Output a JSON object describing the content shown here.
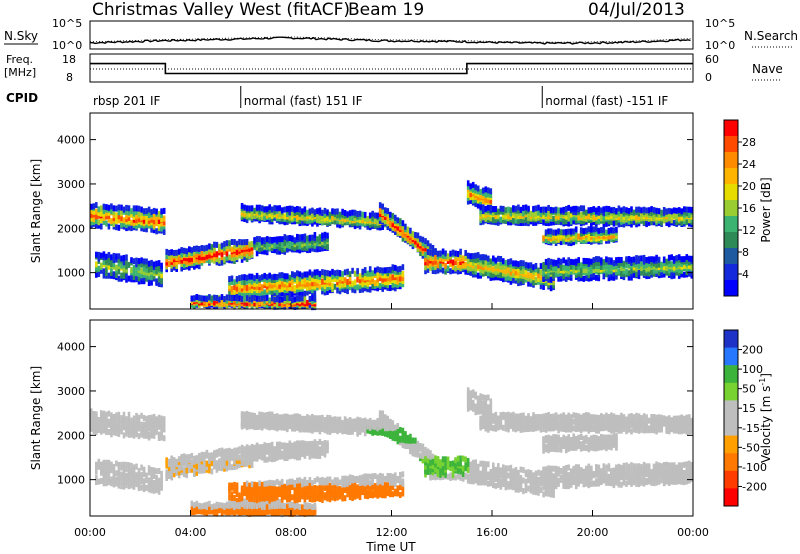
{
  "header": {
    "station": "Christmas Valley West (fitACF)",
    "beam": "Beam 19",
    "date": "04/Jul/2013"
  },
  "noise_panel": {
    "left_label": "N.Sky",
    "right_label": "N.Search",
    "left_ticks": [
      "10^5",
      "10^0"
    ],
    "right_ticks": [
      "10^5",
      "10^0"
    ]
  },
  "freq_panel": {
    "left_label_line1": "Freq.",
    "left_label_line2": "[MHz]",
    "right_label": "Nave",
    "left_ticks": [
      "18",
      "8"
    ],
    "right_ticks": [
      "60",
      "0"
    ]
  },
  "cpid": {
    "label": "CPID",
    "segments": [
      {
        "start_hour": 0,
        "text": "rbsp 201 IF"
      },
      {
        "start_hour": 6,
        "text": "normal (fast) 151 IF"
      },
      {
        "start_hour": 18,
        "text": "normal (fast) -151 IF"
      }
    ]
  },
  "power_panel": {
    "ylabel": "Slant Range [km]",
    "cbar_label": "Power [dB]",
    "cbar_ticks": [
      "28",
      "24",
      "20",
      "16",
      "12",
      "8",
      "4"
    ],
    "cbar_colors": [
      "#ff0000",
      "#ff4a00",
      "#ff8c00",
      "#ffb400",
      "#e6dc00",
      "#9acd32",
      "#3cb371",
      "#2e8b57",
      "#1e5aa0",
      "#1428dc",
      "#0000ff"
    ]
  },
  "velocity_panel": {
    "ylabel": "Slant Range [km]",
    "cbar_label": "Velocity [m s",
    "cbar_label_sup": "-1",
    "cbar_label_end": "]",
    "cbar_ticks": [
      "200",
      "100",
      "50",
      "15",
      "-15",
      "-50",
      "-100",
      "-200"
    ],
    "cbar_colors": [
      "#1e32c8",
      "#2878ff",
      "#3cb43c",
      "#78d232",
      "#bebebe",
      "#bebebe",
      "#ffa000",
      "#ff7800",
      "#ff3c00",
      "#ff0000"
    ]
  },
  "time_axis": {
    "label": "Time UT",
    "ticks": [
      "00:00",
      "04:00",
      "08:00",
      "12:00",
      "16:00",
      "20:00",
      "00:00"
    ]
  },
  "chart_data": {
    "type": "heatmap",
    "x_range_hours": [
      0,
      24
    ],
    "range_ticks_km": [
      1000,
      2000,
      3000,
      4000
    ],
    "range_limits_km": [
      180,
      4600
    ],
    "noise_sky_trace": [
      1.1,
      1.3,
      1.5,
      1.7,
      1.8,
      2.0,
      2.1,
      2.3,
      2.4,
      2.2,
      2.0,
      1.8,
      1.6,
      1.6,
      1.5,
      1.4,
      1.2,
      1.1,
      1.0,
      1.0,
      1.1,
      1.2,
      1.4,
      1.7
    ],
    "frequency_mhz": [
      {
        "start_hour": 0,
        "end_hour": 3,
        "value": 16
      },
      {
        "start_hour": 3,
        "end_hour": 15,
        "value": 10.5
      },
      {
        "start_hour": 15,
        "end_hour": 24,
        "value": 16
      }
    ],
    "nave_level": 30,
    "echo_bands": [
      {
        "start_hour": 0.0,
        "end_hour": 3.0,
        "r_start_km": 2300,
        "r_end_km": 2150,
        "width_km": 420,
        "peak_db": 26
      },
      {
        "start_hour": 0.2,
        "end_hour": 2.9,
        "r_start_km": 1200,
        "r_end_km": 950,
        "width_km": 450,
        "peak_db": 14
      },
      {
        "start_hour": 3.0,
        "end_hour": 6.5,
        "r_start_km": 1250,
        "r_end_km": 1550,
        "width_km": 380,
        "peak_db": 30
      },
      {
        "start_hour": 6.5,
        "end_hour": 9.5,
        "r_start_km": 1600,
        "r_end_km": 1700,
        "width_km": 280,
        "peak_db": 12
      },
      {
        "start_hour": 5.5,
        "end_hour": 12.5,
        "r_start_km": 650,
        "r_end_km": 900,
        "width_km": 420,
        "peak_db": 24
      },
      {
        "start_hour": 6.0,
        "end_hour": 12.0,
        "r_start_km": 2350,
        "r_end_km": 2150,
        "width_km": 260,
        "peak_db": 18
      },
      {
        "start_hour": 4.0,
        "end_hour": 9.0,
        "r_start_km": 350,
        "r_end_km": 320,
        "width_km": 160,
        "peak_db": 28
      },
      {
        "start_hour": 11.5,
        "end_hour": 14.0,
        "r_start_km": 2350,
        "r_end_km": 1200,
        "width_km": 320,
        "peak_db": 30
      },
      {
        "start_hour": 13.3,
        "end_hour": 15.0,
        "r_start_km": 1250,
        "r_end_km": 1250,
        "width_km": 400,
        "peak_db": 28
      },
      {
        "start_hour": 15.0,
        "end_hour": 16.0,
        "r_start_km": 2800,
        "r_end_km": 2600,
        "width_km": 380,
        "peak_db": 24
      },
      {
        "start_hour": 15.5,
        "end_hour": 24.0,
        "r_start_km": 2300,
        "r_end_km": 2250,
        "width_km": 300,
        "peak_db": 18
      },
      {
        "start_hour": 18.0,
        "end_hour": 21.0,
        "r_start_km": 1800,
        "r_end_km": 1850,
        "width_km": 250,
        "peak_db": 22
      },
      {
        "start_hour": 15.0,
        "end_hour": 18.5,
        "r_start_km": 1200,
        "r_end_km": 850,
        "width_km": 420,
        "peak_db": 20
      },
      {
        "start_hour": 18.0,
        "end_hour": 24.0,
        "r_start_km": 1050,
        "r_end_km": 1150,
        "width_km": 380,
        "peak_db": 14
      }
    ],
    "velocity_bands": [
      {
        "start_hour": 3.0,
        "end_hour": 6.5,
        "r_center_km": 1250,
        "width_km": 400,
        "value_ms": -10
      },
      {
        "start_hour": 5.5,
        "end_hour": 12.5,
        "r_center_km": 700,
        "width_km": 380,
        "value_ms": -60
      },
      {
        "start_hour": 3.0,
        "end_hour": 12.0,
        "r_center_km": 300,
        "width_km": 160,
        "value_ms": -70
      },
      {
        "start_hour": 11.0,
        "end_hour": 13.5,
        "r_center_km": 2000,
        "width_km": 300,
        "value_ms": 40
      },
      {
        "start_hour": 13.0,
        "end_hour": 15.0,
        "r_center_km": 1300,
        "width_km": 400,
        "value_ms": 30
      },
      {
        "start_hour": 15.5,
        "end_hour": 24.0,
        "r_center_km": 1700,
        "width_km": 600,
        "value_ms": 0
      }
    ]
  }
}
